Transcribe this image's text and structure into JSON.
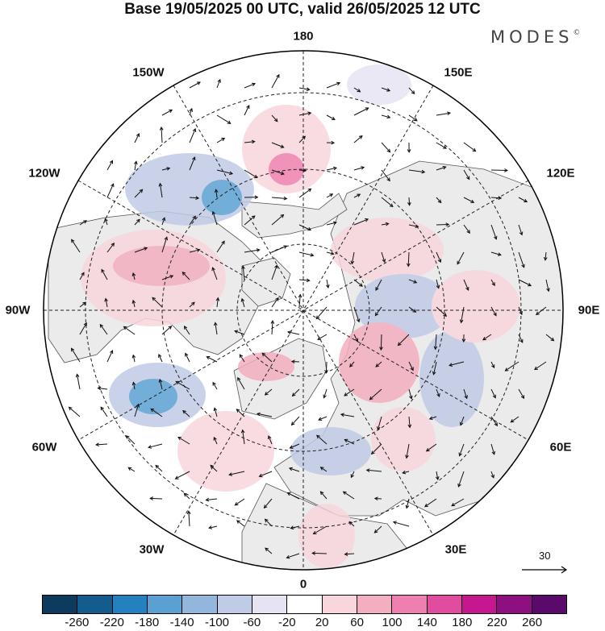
{
  "title": "Base 19/05/2025 00 UTC, valid 26/05/2025 12 UTC",
  "brand": "MODES",
  "brand_mark": "©",
  "longitude_labels": {
    "n180": "180",
    "w150": "150W",
    "e150": "150E",
    "w120": "120W",
    "e120": "120E",
    "w90": "90W",
    "e90": "90E",
    "w60": "60W",
    "e60": "60E",
    "w30": "30W",
    "e30": "30E",
    "s0": "0"
  },
  "wind_reference": {
    "value": "30"
  },
  "colorbar": {
    "ticks": [
      "-260",
      "-220",
      "-180",
      "-140",
      "-100",
      "-60",
      "-20",
      "20",
      "60",
      "100",
      "140",
      "180",
      "220",
      "260"
    ],
    "colors": [
      "#0d3b5e",
      "#145c8e",
      "#2580bf",
      "#5aa0d2",
      "#93b7dc",
      "#c0cbe6",
      "#e6e4f2",
      "#ffffff",
      "#f8d6dc",
      "#f3aebf",
      "#ef7fae",
      "#e24c9f",
      "#c5178f",
      "#8e0f80",
      "#5a0a6b"
    ]
  },
  "colors": {
    "land": "#ebebeb",
    "ocean": "#ffffff",
    "negative_anomaly": "#93b7dc",
    "positive_anomaly": "#f3aebf"
  }
}
